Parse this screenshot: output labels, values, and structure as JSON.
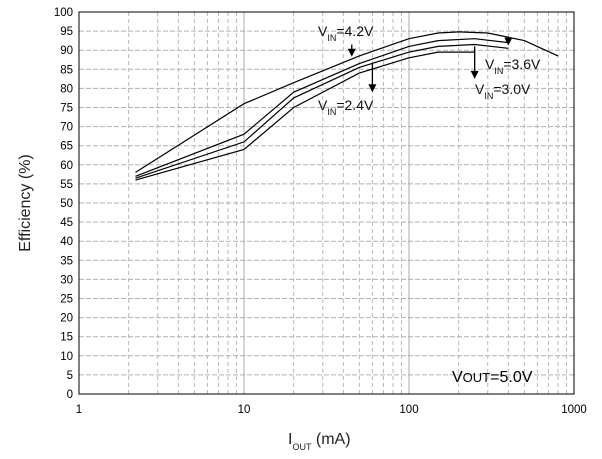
{
  "chart_data": {
    "type": "line",
    "xlabel": "I",
    "xlabel_sub": "OUT",
    "xlabel_unit": " (mA)",
    "ylabel": "Efficiency (%)",
    "xscale": "log",
    "xlim": [
      1,
      1000
    ],
    "ylim": [
      0,
      100
    ],
    "x_ticks": [
      1,
      10,
      100,
      1000
    ],
    "x_tick_labels": [
      "1",
      "10",
      "100",
      "1000"
    ],
    "y_ticks": [
      0,
      5,
      10,
      15,
      20,
      25,
      30,
      35,
      40,
      45,
      50,
      55,
      60,
      65,
      70,
      75,
      80,
      85,
      90,
      95,
      100
    ],
    "grid": true,
    "series": [
      {
        "name": "V_IN=4.2V",
        "x": [
          2.2,
          10,
          20,
          50,
          100,
          150,
          200,
          300,
          500,
          800
        ],
        "y": [
          58,
          76,
          81.5,
          88.5,
          93,
          94.5,
          94.8,
          94.5,
          92.5,
          88.5
        ]
      },
      {
        "name": "V_IN=3.6V",
        "x": [
          2.2,
          10,
          20,
          50,
          100,
          150,
          250,
          400
        ],
        "y": [
          57,
          68,
          79,
          86.5,
          91,
          92.5,
          93,
          92
        ]
      },
      {
        "name": "V_IN=3.0V",
        "x": [
          2.2,
          10,
          20,
          50,
          100,
          150,
          250,
          400
        ],
        "y": [
          56.5,
          66,
          77.5,
          85.5,
          89.5,
          91,
          91.5,
          90.5
        ]
      },
      {
        "name": "V_IN=2.4V",
        "x": [
          2.2,
          10,
          20,
          50,
          100,
          150,
          250
        ],
        "y": [
          56,
          64,
          75,
          84,
          88,
          89.5,
          89.5
        ]
      }
    ],
    "annotations": [
      {
        "pre": "V",
        "sub": "IN",
        "post": "=4.2V"
      },
      {
        "pre": "V",
        "sub": "IN",
        "post": "=3.6V"
      },
      {
        "pre": "V",
        "sub": "IN",
        "post": "=3.0V"
      },
      {
        "pre": "V",
        "sub": "IN",
        "post": "=2.4V"
      }
    ],
    "inset_label": {
      "pre": "V",
      "sub": "OUT",
      "post": "=5.0V"
    }
  }
}
